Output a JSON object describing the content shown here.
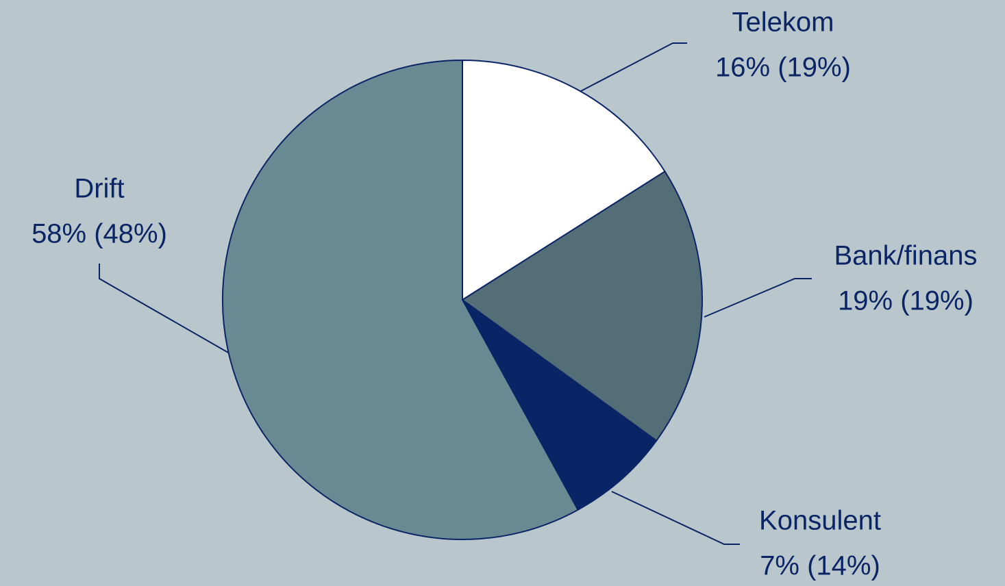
{
  "chart_data": {
    "type": "pie",
    "categories": [
      "Telekom",
      "Bank/finans",
      "Konsulent",
      "Drift"
    ],
    "values": [
      16,
      19,
      7,
      58
    ],
    "value_labels": [
      "16% (19%)",
      "19% (19%)",
      "7% (14%)",
      "58% (48%)"
    ],
    "colors": [
      "#ffffff",
      "#546e77",
      "#0a2565",
      "#6a8a93"
    ]
  }
}
